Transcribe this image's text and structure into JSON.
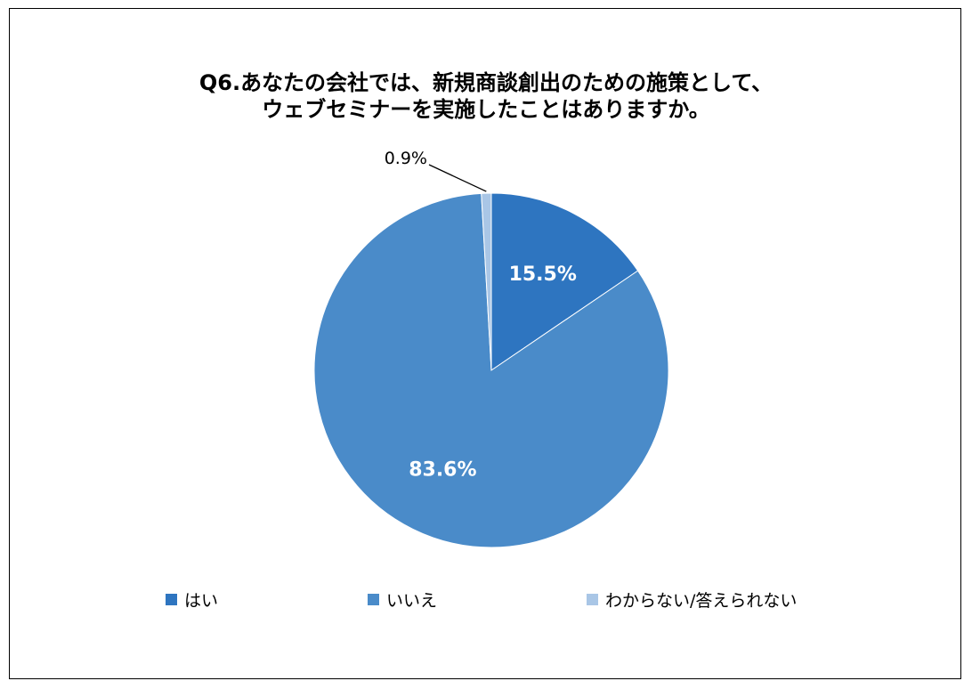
{
  "chart_data": {
    "type": "pie",
    "title_lines": [
      "Q6.あなたの会社では、新規商談創出のための施策として、",
      "ウェブセミナーを実施したことはありますか。"
    ],
    "categories": [
      "はい",
      "いいえ",
      "わからない/答えられない"
    ],
    "values": [
      15.5,
      83.6,
      0.9
    ],
    "data_labels": [
      "15.5%",
      "83.6%",
      "0.9%"
    ],
    "colors": [
      "#2e75c0",
      "#4a8bc9",
      "#a9c6e6"
    ],
    "legend_position": "bottom",
    "start_angle": "12 o'clock, clockwise"
  }
}
